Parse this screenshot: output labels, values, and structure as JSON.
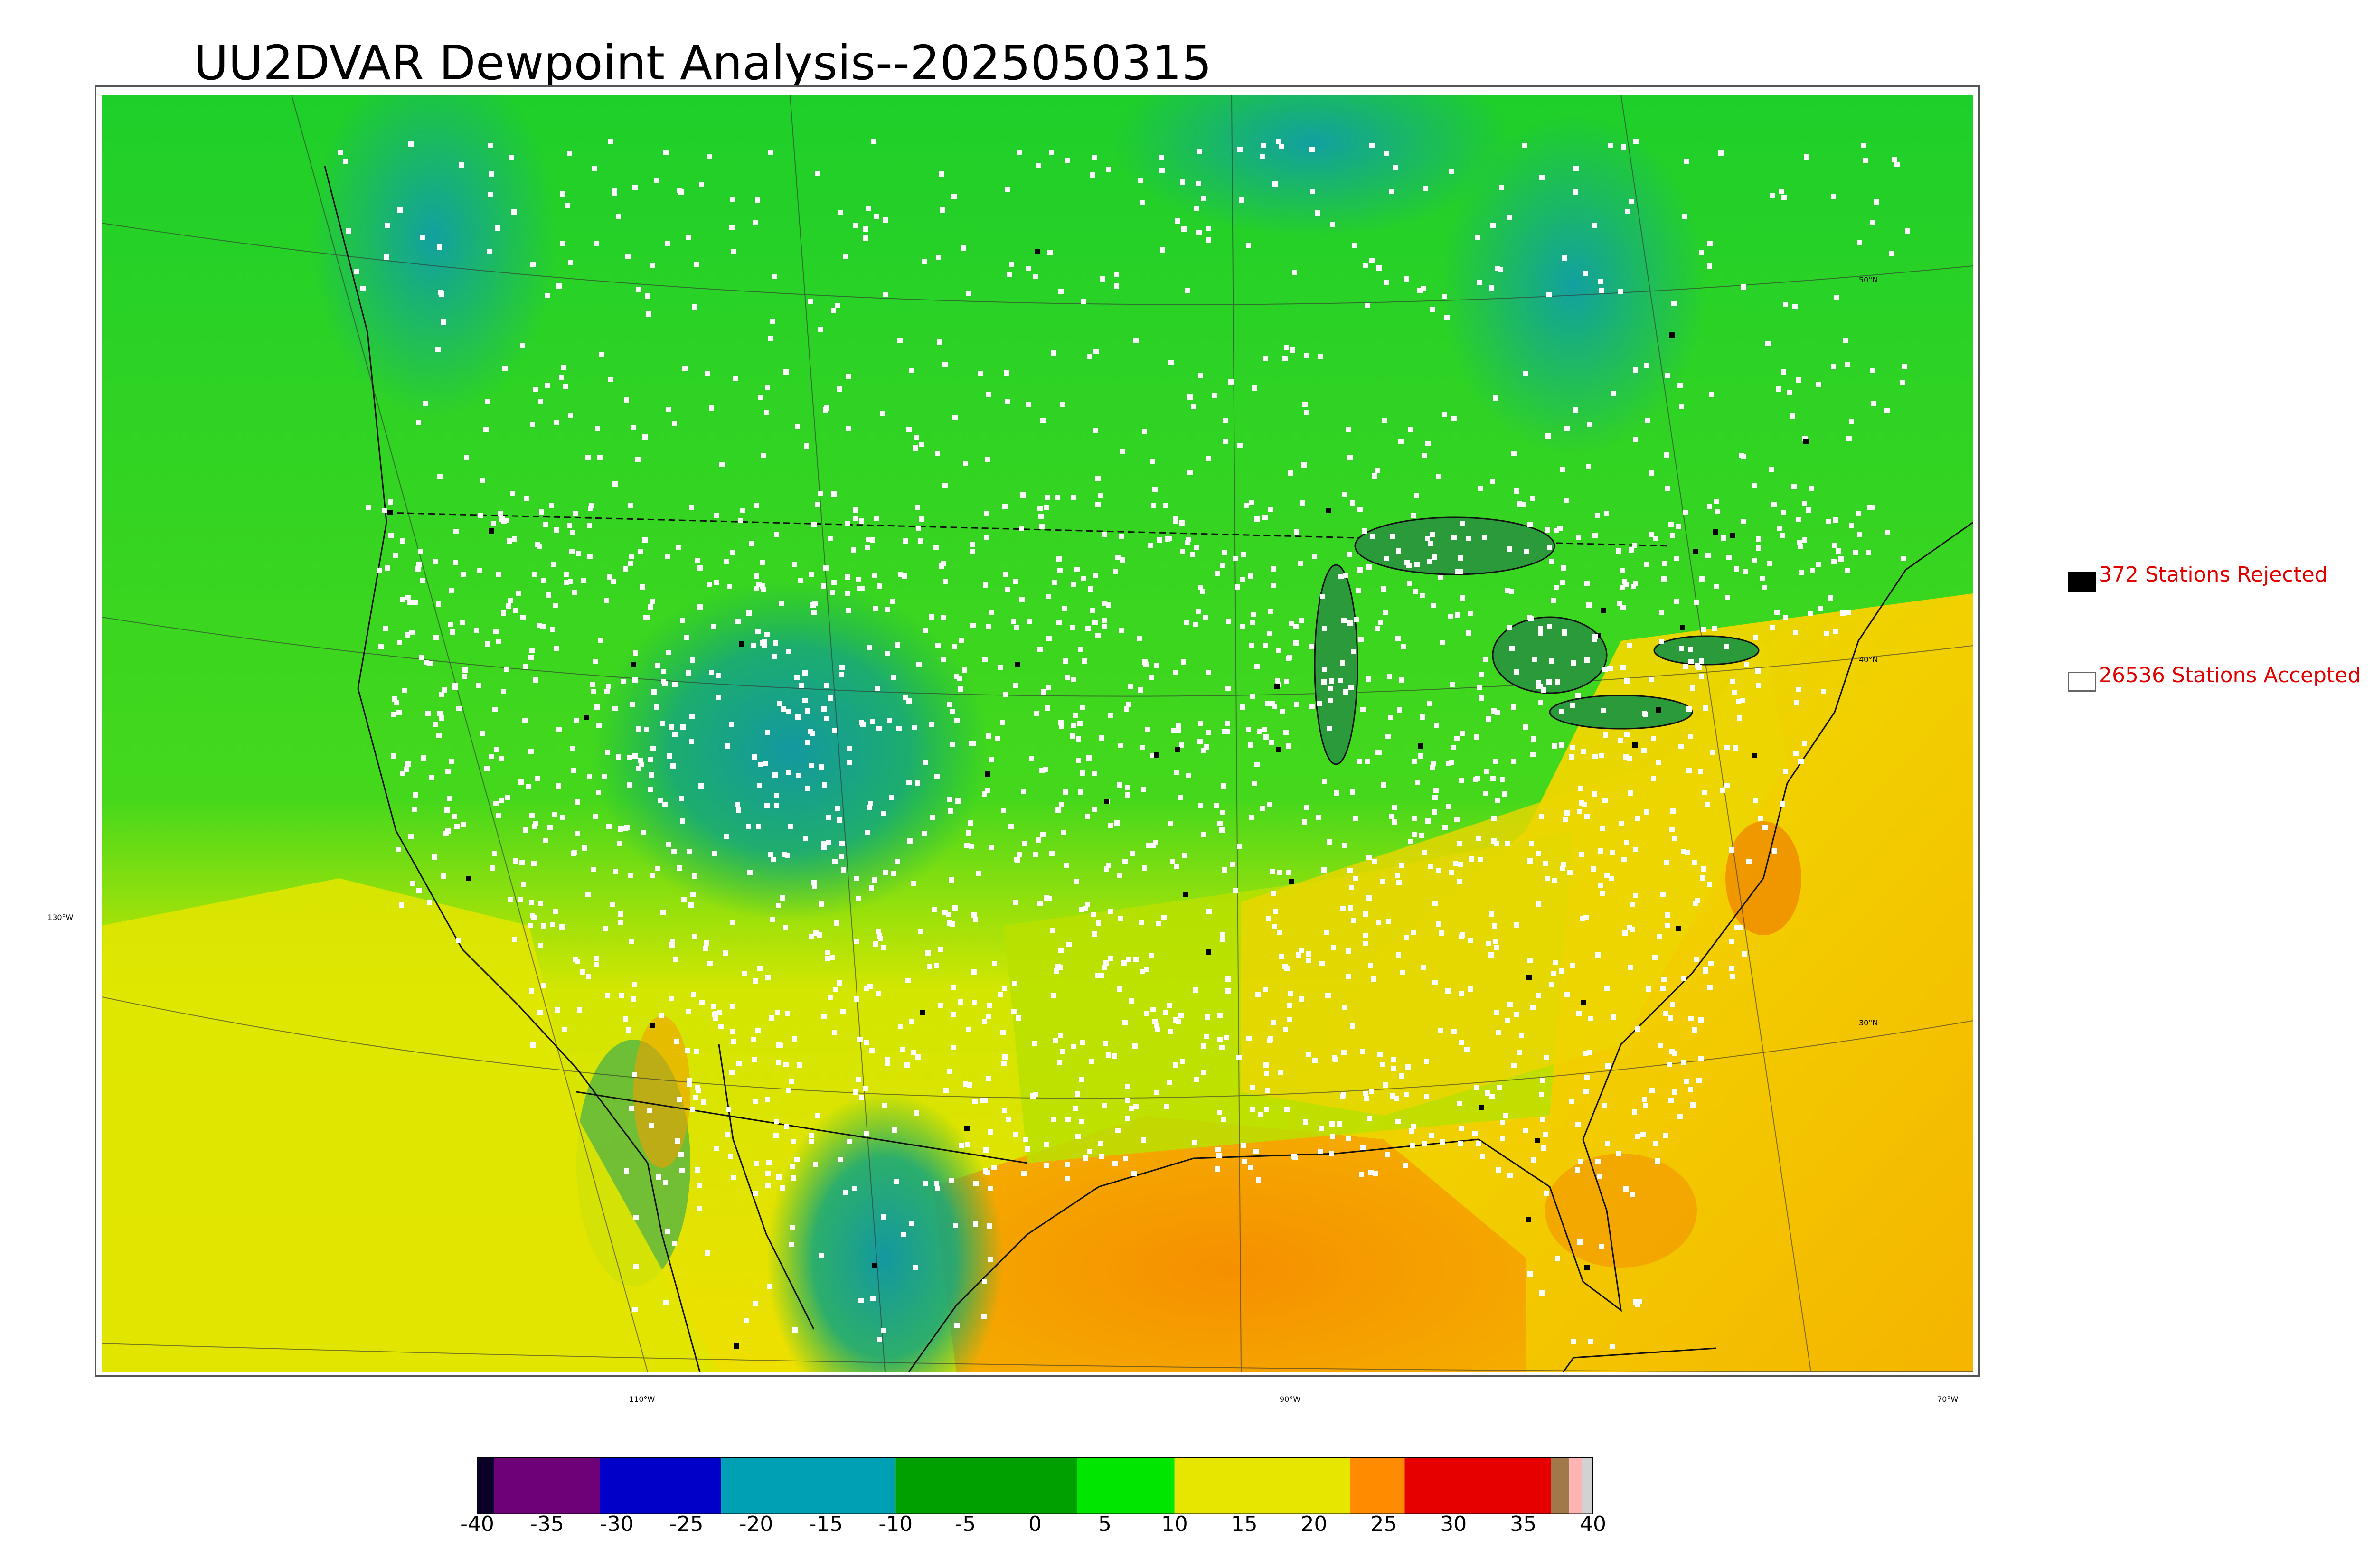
{
  "title": "UU2DVAR Dewpoint Analysis--2025050315",
  "lat_labels": [
    "50°N",
    "40°N",
    "30°N"
  ],
  "lon_labels": [
    "130°W",
    "110°W",
    "90°W",
    "70°W"
  ],
  "legend": {
    "rejected": {
      "label": "372 Stations Rejected",
      "color": "#000000"
    },
    "accepted": {
      "label": "26536 Stations Accepted",
      "color": "#ffffff"
    }
  },
  "colorbar": {
    "ticks": [
      "-40",
      "-35",
      "-30",
      "-25",
      "-20",
      "-15",
      "-10",
      "-5",
      "0",
      "5",
      "10",
      "15",
      "20",
      "25",
      "30",
      "35",
      "40"
    ],
    "range": [
      -40,
      40
    ],
    "bands": [
      {
        "from": -40,
        "to": -38.8,
        "color": "#0a0028"
      },
      {
        "from": -38.8,
        "to": -31.2,
        "color": "#6e0078"
      },
      {
        "from": -31.2,
        "to": -22.5,
        "color": "#0000c8"
      },
      {
        "from": -22.5,
        "to": -10,
        "color": "#00a0b4"
      },
      {
        "from": -10,
        "to": 3,
        "color": "#00a000"
      },
      {
        "from": 3,
        "to": 10,
        "color": "#00e600"
      },
      {
        "from": 10,
        "to": 22.6,
        "color": "#e6e600"
      },
      {
        "from": 22.6,
        "to": 26.5,
        "color": "#ff8c00"
      },
      {
        "from": 26.5,
        "to": 37,
        "color": "#e60000"
      },
      {
        "from": 37,
        "to": 38.3,
        "color": "#a0784a"
      },
      {
        "from": 38.3,
        "to": 39.2,
        "color": "#ffb4b4"
      },
      {
        "from": 39.2,
        "to": 40,
        "color": "#d2d2d2"
      }
    ]
  },
  "map_colors": {
    "ocean_north": "#22c43a",
    "ocean_south": "#e3e600",
    "gulf": "#f7a000",
    "dry_west": "#1aa07a",
    "canada_cold": "#1aa0a0",
    "plains": "#1fd31f",
    "southeast": "#e8d400",
    "station_accepted": "#ffffff",
    "station_rejected": "#000000"
  }
}
